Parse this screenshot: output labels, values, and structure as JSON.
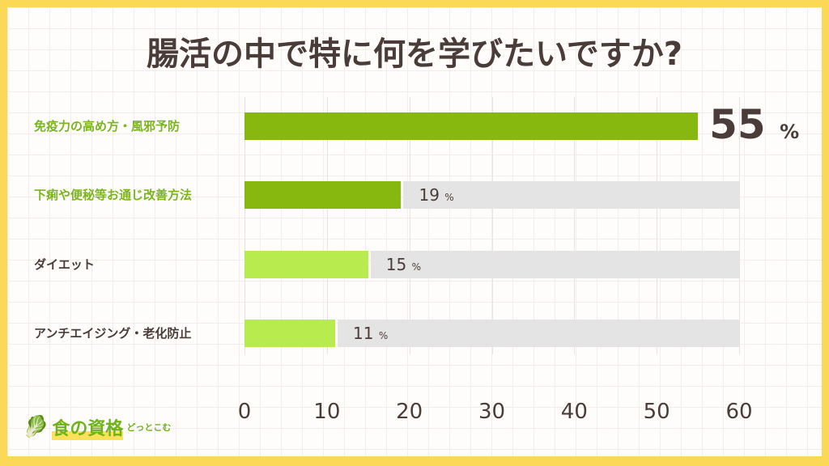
{
  "title": "腸活の中で特に何を学びたいですか?",
  "chart_data": {
    "type": "bar",
    "orientation": "horizontal",
    "title": "腸活の中で特に何を学びたいですか?",
    "categories": [
      "免疫力の高め方・風邪予防",
      "下痢や便秘等お通じ改善方法",
      "ダイエット",
      "アンチエイジング・老化防止"
    ],
    "values": [
      55,
      19,
      15,
      11
    ],
    "unit": "%",
    "xlim": [
      0,
      60
    ],
    "xticks": [
      "0",
      "10",
      "20",
      "30",
      "40",
      "50",
      "60"
    ],
    "bar_colors": [
      "#86b80f",
      "#86b80f",
      "#b8ec4e",
      "#b8ec4e"
    ],
    "label_colors": [
      "#7ab51d",
      "#7ab51d",
      "#4a3c38",
      "#4a3c38"
    ],
    "track_color": "#e4e4e4",
    "grid": true
  },
  "logo": {
    "text": "食の資格",
    "sub": "どっとこむ"
  }
}
